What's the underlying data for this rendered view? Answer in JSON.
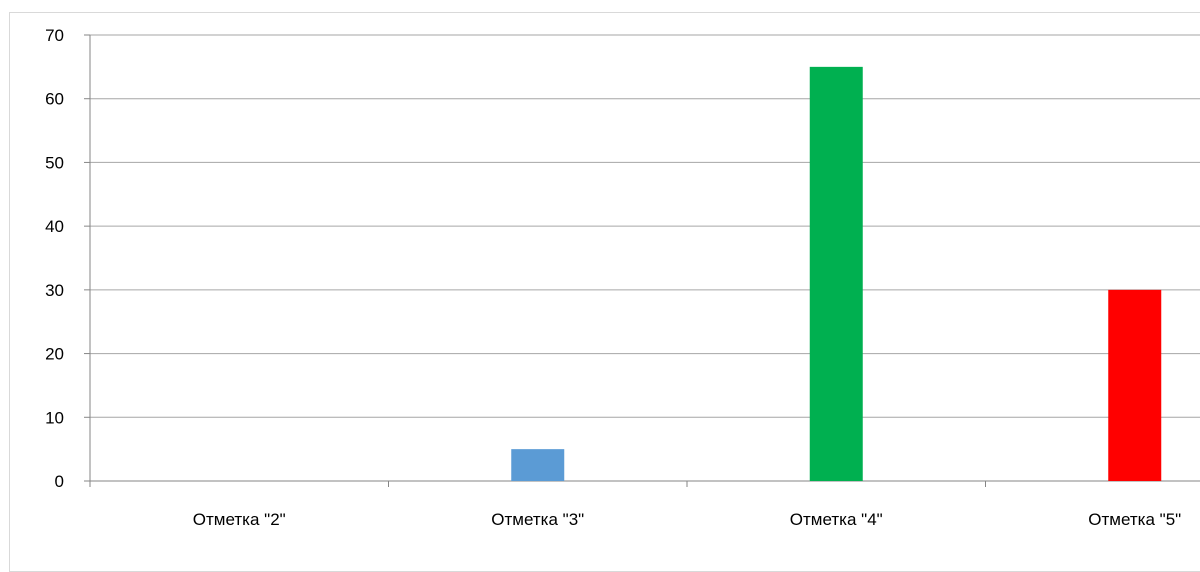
{
  "chart_data": {
    "type": "bar",
    "categories": [
      "Отметка \"2\"",
      "Отметка \"3\"",
      "Отметка \"4\"",
      "Отметка \"5\""
    ],
    "values": [
      0,
      5,
      65,
      30
    ],
    "colors": [
      "#5b9bd5",
      "#5b9bd5",
      "#00b050",
      "#ff0000"
    ],
    "ylim": [
      0,
      70
    ],
    "yticks": [
      0,
      10,
      20,
      30,
      40,
      50,
      60,
      70
    ],
    "title": "",
    "xlabel": "",
    "ylabel": "",
    "grid": true,
    "gridline_color": "#a6a6a6",
    "axis_color": "#868686"
  }
}
